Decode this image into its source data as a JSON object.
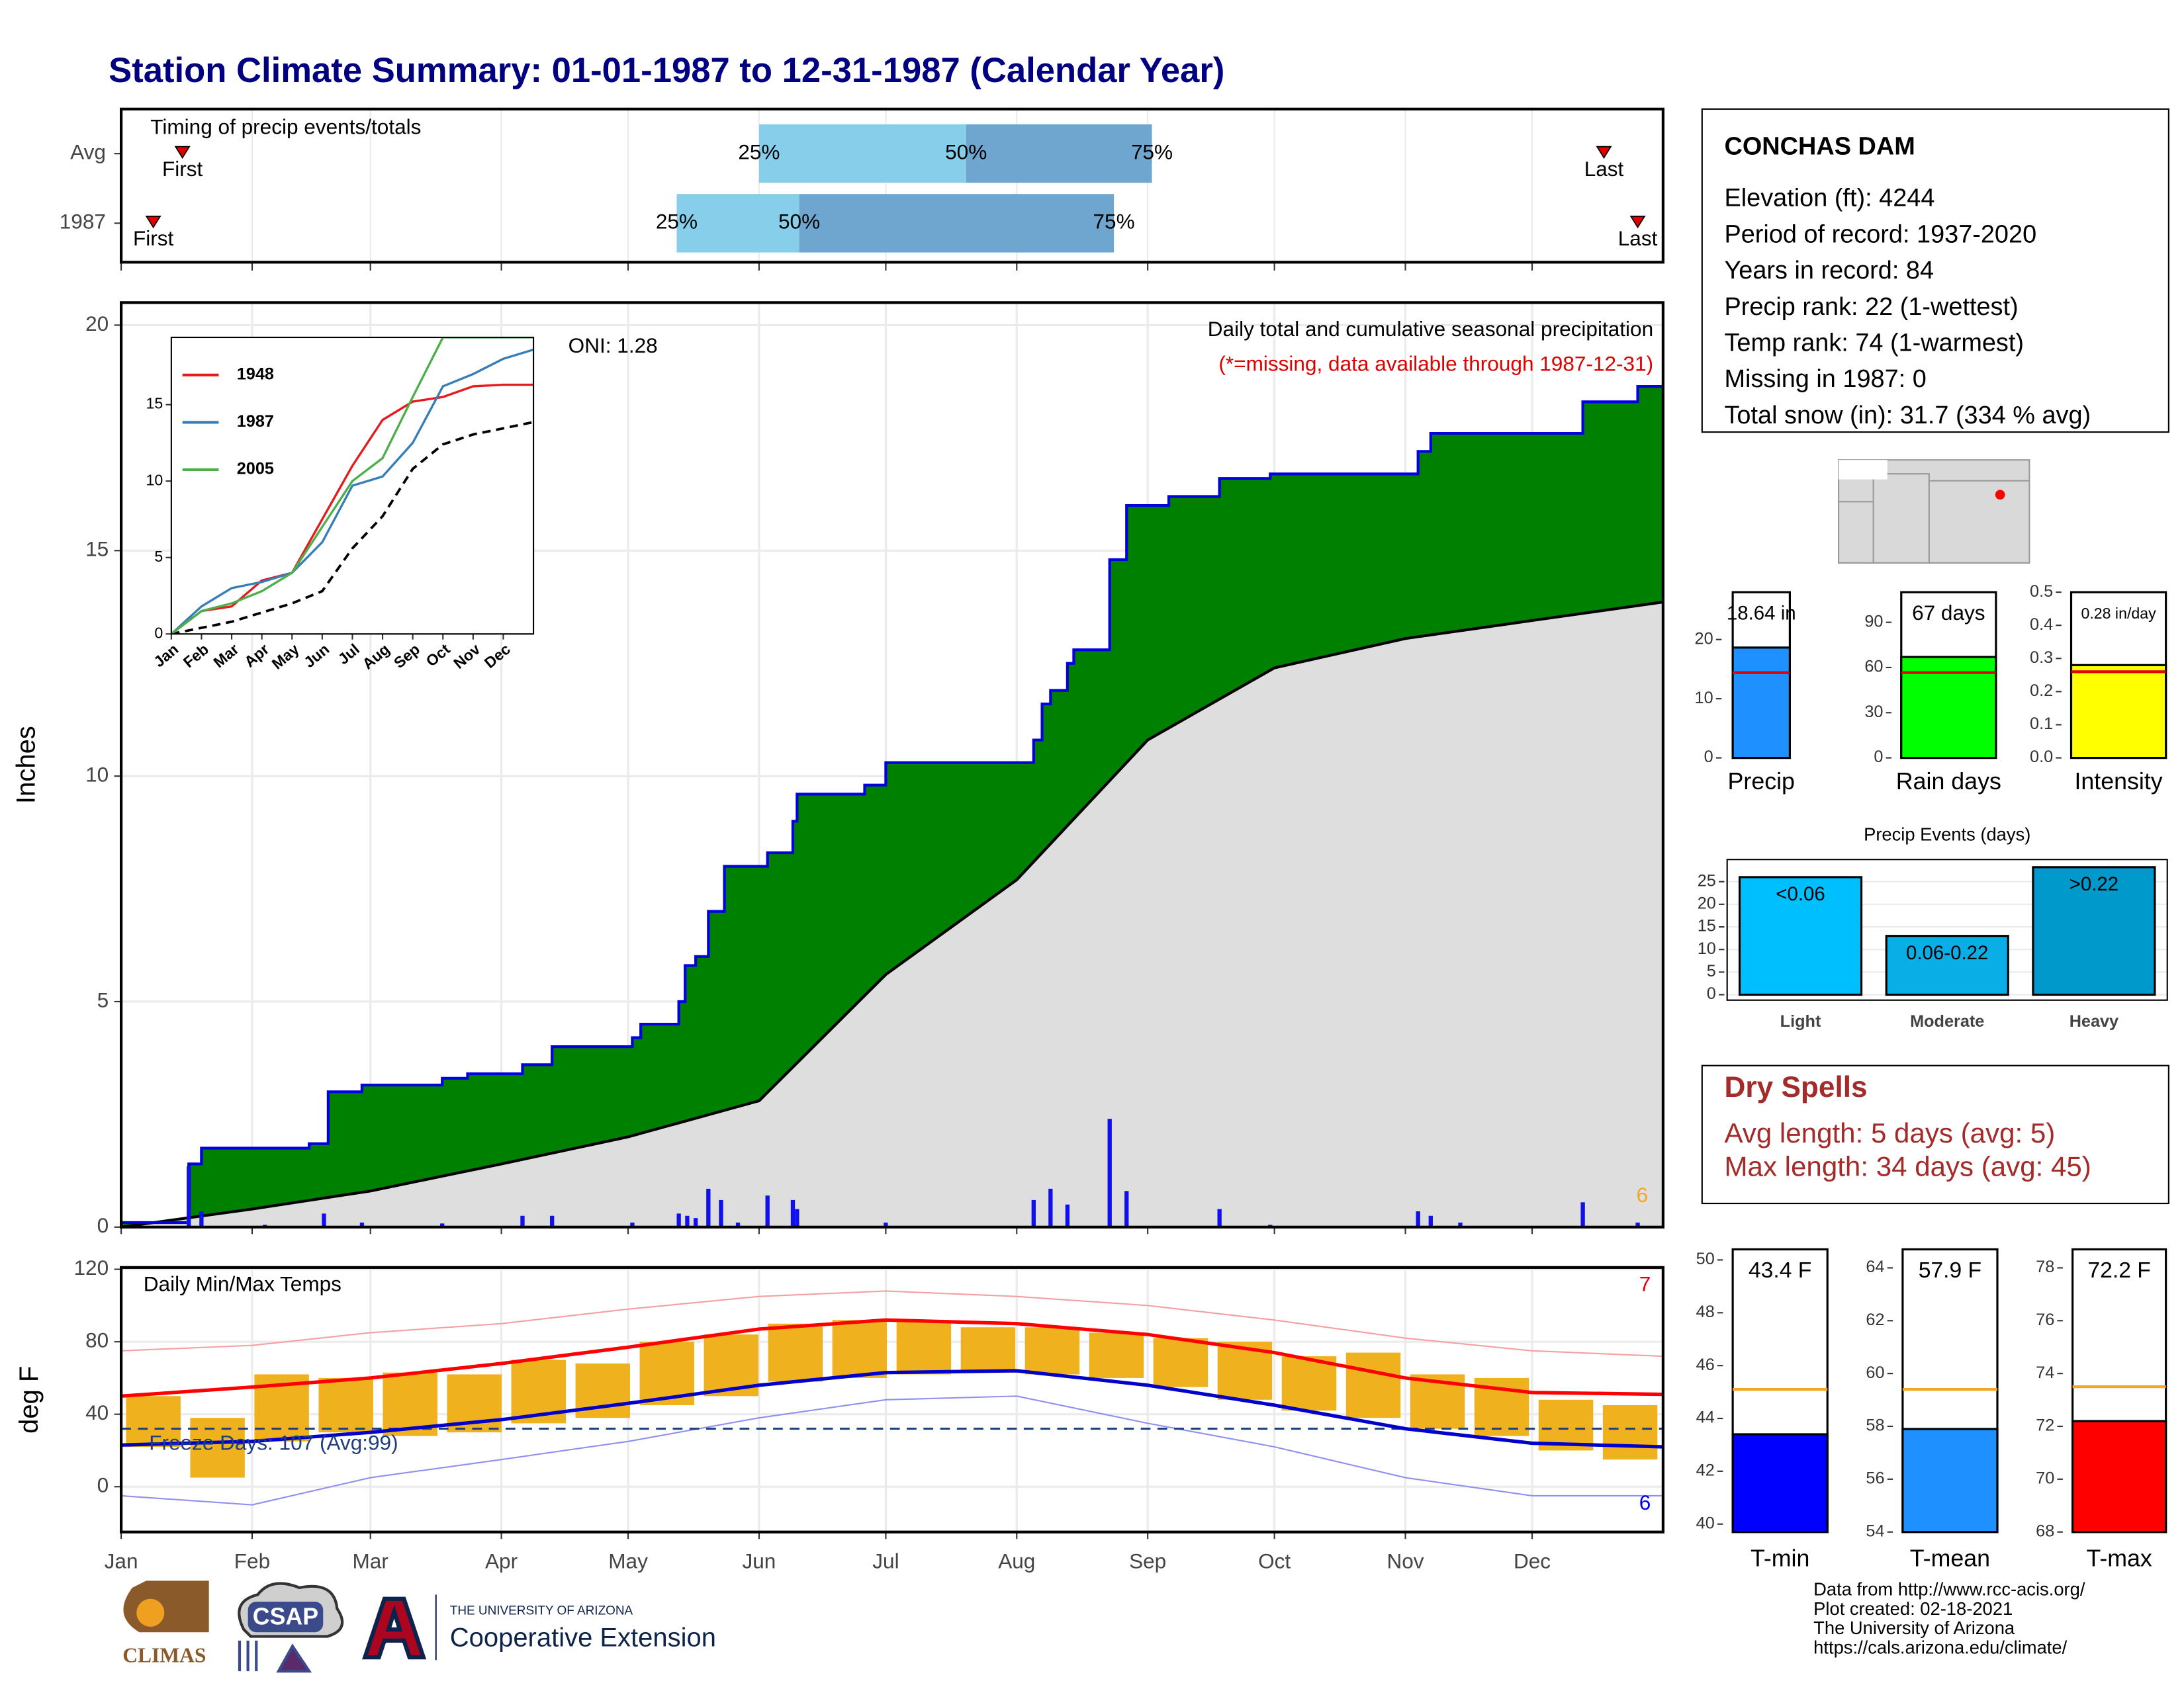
{
  "title": "Station Climate Summary: 01-01-1987 to 12-31-1987 (Calendar Year)",
  "chart_data": [
    {
      "type": "timing",
      "title": "Timing of precip events/totals",
      "categories": [
        "Avg",
        "1987"
      ],
      "first": [
        14.5,
        7.6
      ],
      "p25": [
        151,
        131.5
      ],
      "p50": [
        200,
        160.5
      ],
      "p75": [
        244,
        235
      ],
      "last": [
        351,
        359
      ],
      "first_label": "First",
      "last_label": "Last",
      "p25_label": "25%",
      "p50_label": "50%",
      "p75_label": "75%",
      "colors": [
        "#87ceeb",
        "#6fa6cf"
      ],
      "marker_color": "#e00000",
      "xlim": [
        0,
        365
      ],
      "xticks": [
        0,
        31,
        59,
        90,
        120,
        151,
        181,
        212,
        243,
        273,
        304,
        334
      ]
    },
    {
      "type": "precip",
      "ylabel": "Inches",
      "oni": "ONI: 1.28",
      "subtitle": "Daily total and cumulative seasonal precipitation",
      "note": "(*=missing, data available through 1987-12-31)",
      "count_label": "6",
      "cumulative": {
        "color": "#008000",
        "line_color": "#0000e0",
        "x": [
          0,
          16,
          19,
          44.5,
          49,
          57,
          76,
          82,
          95,
          102,
          121,
          123,
          132,
          133.5,
          136,
          139,
          142.8,
          153,
          159,
          160,
          176,
          181,
          216,
          218,
          220,
          224,
          225.5,
          234,
          238,
          248,
          260,
          272,
          307,
          310,
          346,
          359,
          365
        ],
        "values": [
          0.1,
          1.4,
          1.75,
          1.85,
          3.0,
          3.15,
          3.3,
          3.4,
          3.6,
          4.0,
          4.2,
          4.5,
          5.0,
          5.8,
          6.0,
          7.0,
          8.0,
          8.3,
          9.0,
          9.6,
          9.8,
          10.3,
          10.8,
          11.6,
          11.9,
          12.5,
          12.8,
          14.8,
          16.0,
          16.2,
          16.6,
          16.7,
          17.2,
          17.6,
          18.3,
          18.64,
          18.64
        ]
      },
      "average": {
        "color": "#dedede",
        "x": [
          0,
          31,
          59,
          90,
          120,
          151,
          181,
          212,
          243,
          273,
          304,
          334,
          365
        ],
        "values": [
          0,
          0.4,
          0.8,
          1.4,
          2.0,
          2.8,
          5.6,
          7.7,
          10.8,
          12.4,
          13.05,
          13.45,
          13.86
        ]
      },
      "daily": {
        "color": "#1010ee",
        "x": [
          16,
          19,
          34,
          48,
          57,
          76,
          95,
          102,
          121,
          132,
          134,
          136,
          139,
          142,
          146,
          153,
          159,
          160,
          181,
          216,
          220,
          224,
          234,
          238,
          260,
          272,
          307,
          310,
          317,
          346,
          359
        ],
        "values": [
          1.35,
          0.35,
          0.05,
          0.3,
          0.1,
          0.08,
          0.25,
          0.25,
          0.1,
          0.3,
          0.25,
          0.2,
          0.85,
          0.6,
          0.1,
          0.7,
          0.6,
          0.4,
          0.1,
          0.6,
          0.85,
          0.5,
          2.4,
          0.8,
          0.4,
          0.05,
          0.35,
          0.25,
          0.1,
          0.55,
          0.1
        ]
      },
      "xlim": [
        0,
        365
      ],
      "ylim": [
        0,
        20.5
      ],
      "yticks": [
        0,
        5,
        10,
        15,
        20
      ],
      "xticks": [
        0,
        31,
        59,
        90,
        120,
        151,
        181,
        212,
        243,
        273,
        304,
        334
      ],
      "grid": true
    },
    {
      "type": "line",
      "x": [
        0,
        1,
        2,
        3,
        4,
        5,
        6,
        7,
        8,
        9,
        10,
        11,
        12
      ],
      "series": [
        {
          "name": "1948",
          "color": "#e41a1c",
          "values": [
            0,
            1.5,
            1.8,
            3.5,
            4.0,
            7.5,
            11,
            14,
            15.2,
            15.5,
            16.2,
            16.3,
            16.3
          ]
        },
        {
          "name": "1987",
          "color": "#377eb8",
          "values": [
            0,
            1.8,
            3.0,
            3.4,
            4.0,
            6.0,
            9.7,
            10.3,
            12.5,
            16.2,
            17.0,
            18.0,
            18.6
          ]
        },
        {
          "name": "2005",
          "color": "#4daf4a",
          "values": [
            0,
            1.5,
            2.0,
            2.8,
            4.0,
            7.0,
            10.0,
            11.5,
            15.5,
            19.4,
            19.4,
            19.4,
            19.4
          ]
        }
      ],
      "average": {
        "color": "#000000",
        "values": [
          0,
          0.4,
          0.8,
          1.4,
          2.0,
          2.8,
          5.6,
          7.7,
          10.8,
          12.4,
          13.05,
          13.45,
          13.86
        ]
      },
      "xlim": [
        0,
        12
      ],
      "ylim": [
        0,
        19.4
      ],
      "yticks": [
        0,
        5,
        10,
        15
      ],
      "xticks": [
        {
          "value": 0,
          "label": "Jan"
        },
        {
          "value": 1,
          "label": "Feb"
        },
        {
          "value": 2,
          "label": "Mar"
        },
        {
          "value": 3,
          "label": "Apr"
        },
        {
          "value": 4,
          "label": "May"
        },
        {
          "value": 5,
          "label": "Jun"
        },
        {
          "value": 6,
          "label": "Jul"
        },
        {
          "value": 7,
          "label": "Aug"
        },
        {
          "value": 8,
          "label": "Sep"
        },
        {
          "value": 9,
          "label": "Oct"
        },
        {
          "value": 10,
          "label": "Nov"
        },
        {
          "value": 11,
          "label": "Dec"
        }
      ]
    },
    {
      "type": "temps",
      "title": "Daily Min/Max Temps",
      "ylabel": "deg F",
      "freeze_label": "Freeze Days: 107 (Avg:99)",
      "high_count": "7",
      "low_count": "6",
      "x": [
        7.6,
        22.8,
        38,
        53.2,
        68.4,
        83.6,
        98.8,
        114,
        129.2,
        144.4,
        159.6,
        174.8,
        190,
        205.2,
        220.4,
        235.6,
        250.8,
        266,
        281.2,
        296.4,
        311.6,
        326.8,
        342,
        357.2
      ],
      "max": [
        50,
        38,
        62,
        60,
        63,
        62,
        70,
        68,
        80,
        84,
        90,
        92,
        92,
        88,
        88,
        85,
        82,
        80,
        72,
        74,
        62,
        60,
        48,
        45
      ],
      "min": [
        22,
        5,
        25,
        30,
        28,
        30,
        35,
        38,
        45,
        50,
        58,
        60,
        62,
        63,
        62,
        60,
        55,
        48,
        42,
        38,
        32,
        28,
        20,
        15
      ],
      "bar_color": "#efb21e",
      "avg_x": [
        0,
        31,
        59,
        90,
        120,
        151,
        181,
        212,
        243,
        273,
        304,
        334,
        365
      ],
      "avg_max": {
        "color": "#ff0000",
        "values": [
          50,
          55,
          60,
          68,
          77,
          87,
          92,
          90,
          84,
          74,
          60,
          52,
          51
        ]
      },
      "avg_min": {
        "color": "#0000cc",
        "values": [
          23,
          25,
          30,
          37,
          46,
          56,
          63,
          64,
          56,
          45,
          32,
          24,
          22
        ]
      },
      "record_high": {
        "color": "#f4a0a0",
        "values": [
          75,
          78,
          85,
          90,
          98,
          105,
          108,
          105,
          100,
          92,
          82,
          75,
          72
        ]
      },
      "record_low": {
        "color": "#9090f0",
        "values": [
          -5,
          -10,
          5,
          15,
          25,
          38,
          48,
          50,
          35,
          22,
          5,
          -5,
          -5
        ]
      },
      "freeze": 32,
      "freeze_color": "#1f3f7f",
      "xlim": [
        0,
        365
      ],
      "ylim": [
        -25,
        121
      ],
      "yticks": [
        0,
        40,
        80,
        120
      ],
      "xticks": [
        {
          "value": 0,
          "label": "Jan"
        },
        {
          "value": 31,
          "label": "Feb"
        },
        {
          "value": 59,
          "label": "Mar"
        },
        {
          "value": 90,
          "label": "Apr"
        },
        {
          "value": 120,
          "label": "May"
        },
        {
          "value": 151,
          "label": "Jun"
        },
        {
          "value": 181,
          "label": "Jul"
        },
        {
          "value": 212,
          "label": "Aug"
        },
        {
          "value": 243,
          "label": "Sep"
        },
        {
          "value": 273,
          "label": "Oct"
        },
        {
          "value": 304,
          "label": "Nov"
        },
        {
          "value": 334,
          "label": "Dec"
        }
      ],
      "grid": true
    },
    {
      "type": "bar",
      "categories": [
        "Precip"
      ],
      "values": [
        18.64
      ],
      "value_labels": [
        "18.64 in"
      ],
      "average": 14.4,
      "color": "#1e90ff",
      "average_color": "#e00000",
      "ylim": [
        0,
        28
      ],
      "yticks": [
        0,
        10,
        20
      ]
    },
    {
      "type": "bar",
      "categories": [
        "Rain days"
      ],
      "values": [
        67
      ],
      "value_labels": [
        "67 days"
      ],
      "average": 56.6,
      "color": "#00ff00",
      "average_color": "#e00000",
      "ylim": [
        0,
        110
      ],
      "yticks": [
        0,
        30,
        60,
        90
      ]
    },
    {
      "type": "bar",
      "categories": [
        "Intensity"
      ],
      "values": [
        0.28
      ],
      "value_labels": [
        "0.28 in/day"
      ],
      "average": 0.26,
      "color": "#ffff00",
      "average_color": "#e00000",
      "ylim": [
        0,
        0.5
      ],
      "yticks": [
        {
          "value": 0,
          "label": "0.0"
        },
        0.1,
        0.2,
        0.3,
        0.4,
        0.5
      ]
    },
    {
      "type": "bar",
      "title": "Precip Events (days)",
      "categories": [
        "Light",
        "Moderate",
        "Heavy"
      ],
      "values": [
        26,
        13,
        28.2
      ],
      "bar_labels": [
        "<0.06",
        "0.06-0.22",
        ">0.22"
      ],
      "colors": [
        "#00bfff",
        "#0aaee6",
        "#0099cc"
      ],
      "ylim": [
        -1.2,
        29.9
      ],
      "yticks": [
        0,
        5,
        10,
        15,
        20,
        25
      ],
      "grid": true
    },
    {
      "type": "bar",
      "categories": [
        "T-min"
      ],
      "values": [
        43.4
      ],
      "value_labels": [
        "43.4 F"
      ],
      "average": 45.1,
      "color": "#0000ff",
      "average_color": "#f5a623",
      "ylim": [
        39.7,
        50.4
      ],
      "yticks": [
        40,
        42,
        44,
        46,
        48,
        50
      ]
    },
    {
      "type": "bar",
      "categories": [
        "T-mean"
      ],
      "values": [
        57.9
      ],
      "value_labels": [
        "57.9 F"
      ],
      "average": 59.4,
      "color": "#1e90ff",
      "average_color": "#f5a623",
      "ylim": [
        54,
        64.7
      ],
      "yticks": [
        54,
        56,
        58,
        60,
        62,
        64
      ]
    },
    {
      "type": "bar",
      "categories": [
        "T-max"
      ],
      "values": [
        72.2
      ],
      "value_labels": [
        "72.2 F"
      ],
      "average": 73.5,
      "color": "#ff0000",
      "average_color": "#f5a623",
      "ylim": [
        68,
        78.7
      ],
      "yticks": [
        68,
        70,
        72,
        74,
        76,
        78
      ]
    }
  ],
  "station": {
    "name": "CONCHAS DAM",
    "lines": [
      "Elevation (ft): 4244",
      "Period of record: 1937-2020",
      "Years in record: 84",
      "Precip rank: 22 (1-wettest)",
      "Temp rank: 74 (1-warmest)",
      "Missing in 1987: 0",
      "Total snow (in): 31.7 (334 % avg)"
    ]
  },
  "dry_spells": {
    "title": "Dry Spells",
    "lines": [
      "Avg length: 5 days (avg: 5)",
      "Max length: 34 days (avg: 45)"
    ]
  },
  "footer": {
    "credits": [
      "Data from http://www.rcc-acis.org/",
      "Plot created: 02-18-2021",
      "The University of Arizona",
      "https://cals.arizona.edu/climate/"
    ],
    "logos": [
      "CLIMAS",
      "CSAP",
      "THE UNIVERSITY OF ARIZONA",
      "Cooperative Extension"
    ]
  }
}
